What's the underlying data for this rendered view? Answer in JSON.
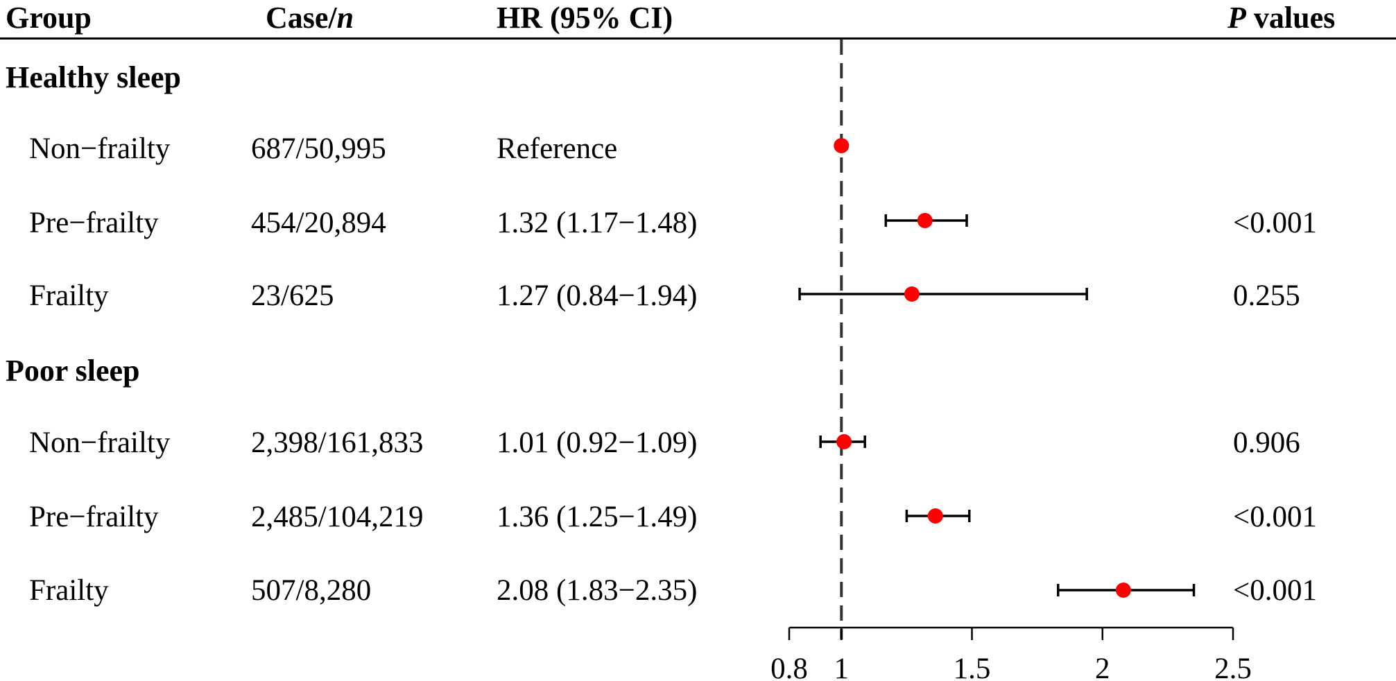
{
  "headers": {
    "group": "Group",
    "case_main": "Case/",
    "case_italic": "n",
    "hr": "HR (95% CI)",
    "p_italic": "P",
    "p_rest": " values"
  },
  "groups": [
    {
      "label": "Healthy sleep",
      "rows": [
        {
          "subgroup": "Non−frailty",
          "case_n": "687/50,995",
          "hr_text": "Reference",
          "p": ""
        },
        {
          "subgroup": "Pre−frailty",
          "case_n": "454/20,894",
          "hr_text": "1.32 (1.17−1.48)",
          "p": "<0.001"
        },
        {
          "subgroup": "Frailty",
          "case_n": "23/625",
          "hr_text": "1.27 (0.84−1.94)",
          "p": "0.255"
        }
      ]
    },
    {
      "label": "Poor sleep",
      "rows": [
        {
          "subgroup": "Non−frailty",
          "case_n": "2,398/161,833",
          "hr_text": "1.01 (0.92−1.09)",
          "p": "0.906"
        },
        {
          "subgroup": "Pre−frailty",
          "case_n": "2,485/104,219",
          "hr_text": "1.36 (1.25−1.49)",
          "p": "<0.001"
        },
        {
          "subgroup": "Frailty",
          "case_n": "507/8,280",
          "hr_text": "2.08 (1.83−2.35)",
          "p": "<0.001"
        }
      ]
    }
  ],
  "chart_data": {
    "type": "forest",
    "reference_line": 1,
    "xlim": [
      0.8,
      2.5
    ],
    "ticks": [
      0.8,
      1,
      1.5,
      2,
      2.5
    ],
    "tick_labels": [
      "0.8",
      "1",
      "1.5",
      "2",
      "2.5"
    ],
    "point_color": "#ff0000",
    "series": [
      {
        "group": "Healthy sleep",
        "subgroup": "Non−frailty",
        "hr": 1.0,
        "lo": null,
        "hi": null
      },
      {
        "group": "Healthy sleep",
        "subgroup": "Pre−frailty",
        "hr": 1.32,
        "lo": 1.17,
        "hi": 1.48
      },
      {
        "group": "Healthy sleep",
        "subgroup": "Frailty",
        "hr": 1.27,
        "lo": 0.84,
        "hi": 1.94
      },
      {
        "group": "Poor sleep",
        "subgroup": "Non−frailty",
        "hr": 1.01,
        "lo": 0.92,
        "hi": 1.09
      },
      {
        "group": "Poor sleep",
        "subgroup": "Pre−frailty",
        "hr": 1.36,
        "lo": 1.25,
        "hi": 1.49
      },
      {
        "group": "Poor sleep",
        "subgroup": "Frailty",
        "hr": 2.08,
        "lo": 1.83,
        "hi": 2.35
      }
    ]
  }
}
